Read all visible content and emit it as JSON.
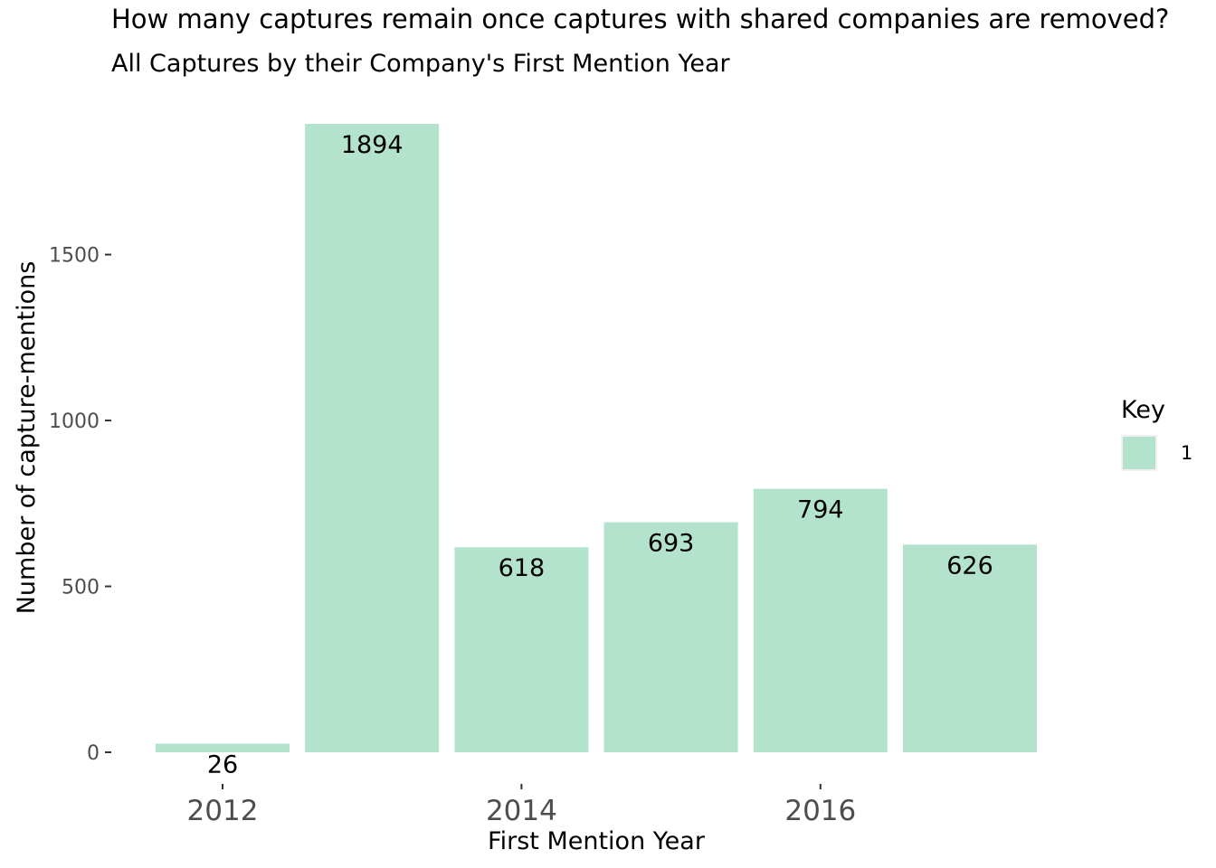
{
  "chart_data": {
    "type": "bar",
    "title": "How many captures remain once captures with shared companies are removed?",
    "subtitle": "All Captures by their Company's First Mention Year",
    "xlabel": "First Mention Year",
    "ylabel": "Number of capture-mentions",
    "categories": [
      "2012",
      "2013",
      "2014",
      "2015",
      "2016",
      "2017"
    ],
    "values": [
      26,
      1894,
      618,
      693,
      794,
      626
    ],
    "x_tick_labels": [
      "2012",
      "2014",
      "2016"
    ],
    "y_ticks": [
      0,
      500,
      1000,
      1500
    ],
    "ylim": [
      0,
      1894
    ],
    "grid": false,
    "legend": {
      "title": "Key",
      "placement": "right",
      "entries": [
        {
          "label": "1",
          "color": "#b3e2cd"
        }
      ]
    },
    "bar_color": "#b3e2cd",
    "data_labels": true
  }
}
